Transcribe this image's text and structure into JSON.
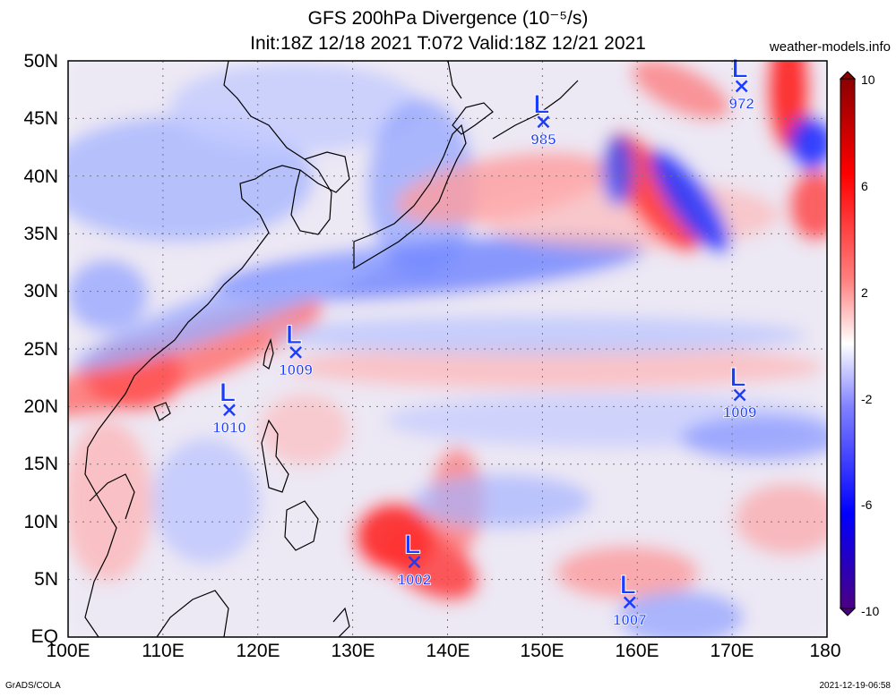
{
  "title_line1": "GFS 200hPa Divergence (10⁻⁵/s)",
  "title_line2": "Init:18Z 12/18 2021 T:072 Valid:18Z 12/21 2021",
  "site": "weather-models.info",
  "footer_left": "GrADS/COLA",
  "footer_right": "2021-12-19-06:58",
  "lat_labels": [
    "50N",
    "45N",
    "40N",
    "35N",
    "30N",
    "25N",
    "20N",
    "15N",
    "10N",
    "5N",
    "EQ"
  ],
  "lon_labels": [
    "100E",
    "110E",
    "120E",
    "130E",
    "140E",
    "150E",
    "160E",
    "170E",
    "180"
  ],
  "colorbar": {
    "labels": [
      "10",
      "6",
      "2",
      "-2",
      "-6",
      "-10"
    ],
    "colors": [
      "#4b0082",
      "#0000ff",
      "#6f6fff",
      "#ffffff",
      "#ff6f6f",
      "#ff0000",
      "#8b0000"
    ]
  },
  "lows": [
    {
      "letter": "L",
      "pressure": "985",
      "lon": 150.1,
      "lat": 44.7
    },
    {
      "letter": "L",
      "pressure": "972",
      "lon": 171.0,
      "lat": 47.8
    },
    {
      "letter": "L",
      "pressure": "1009",
      "lon": 124.0,
      "lat": 24.7
    },
    {
      "letter": "L",
      "pressure": "1010",
      "lon": 117.0,
      "lat": 19.7
    },
    {
      "letter": "L",
      "pressure": "1009",
      "lon": 170.8,
      "lat": 21.0
    },
    {
      "letter": "L",
      "pressure": "1002",
      "lon": 136.5,
      "lat": 6.5
    },
    {
      "letter": "L",
      "pressure": "1007",
      "lon": 159.2,
      "lat": 3.0
    }
  ],
  "map_extent": {
    "lon": [
      100,
      180
    ],
    "lat": [
      0,
      50
    ]
  },
  "colors": {
    "low_marker": "#1a3cff",
    "divergence": "#ff0000",
    "convergence": "#0000ff"
  }
}
